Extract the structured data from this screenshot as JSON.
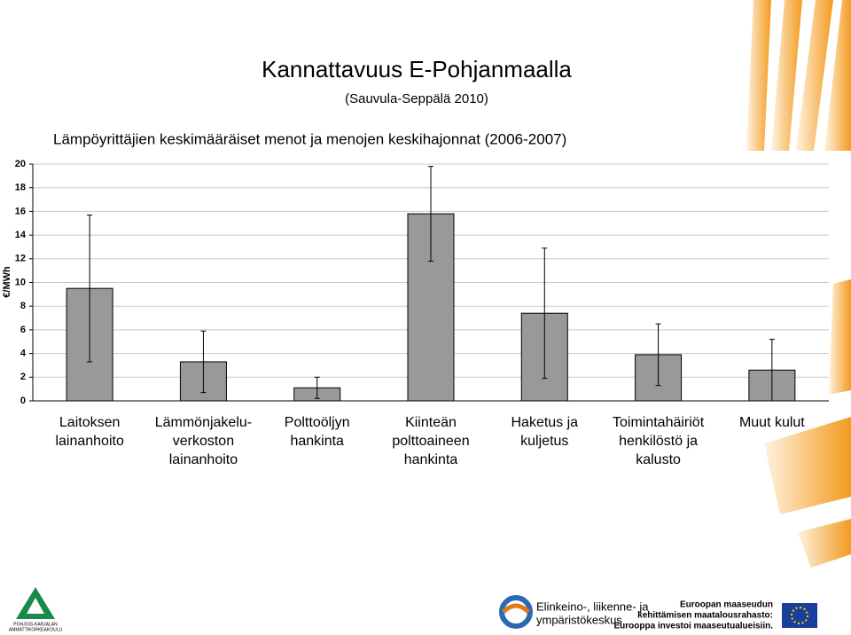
{
  "title": "Kannattavuus E-Pohjanmaalla",
  "subtitle": "(Sauvula-Seppälä 2010)",
  "chart_data": {
    "type": "bar",
    "title": "Lämpöyrittäjien keskimääräiset menot ja menojen keskihajonnat (2006-2007)",
    "y_label": "€/MWh",
    "categories": [
      [
        "Laitoksen",
        "lainanhoito"
      ],
      [
        "Lämmönjakelu-",
        "verkoston",
        "lainanhoito"
      ],
      [
        "Polttoöljyn",
        "hankinta"
      ],
      [
        "Kiinteän",
        "polttoaineen",
        "hankinta"
      ],
      [
        "Haketus ja",
        "kuljetus"
      ],
      [
        "Toimintahäiriöt",
        "henkilöstö ja",
        "kalusto"
      ],
      [
        "Muut kulut"
      ]
    ],
    "values": [
      9.5,
      3.3,
      1.1,
      15.8,
      7.4,
      3.9,
      2.6
    ],
    "errors": [
      6.2,
      2.6,
      0.9,
      4.0,
      5.5,
      2.6,
      2.6
    ],
    "color": "#999999",
    "ylim": [
      0,
      20
    ],
    "yticks": [
      0,
      2,
      4,
      6,
      8,
      10,
      12,
      14,
      16,
      18,
      20
    ],
    "grid": true
  },
  "footer": {
    "left": [
      "POHJOIS-KARJALAN",
      "AMMATTIKORKEAKOULU"
    ],
    "center": [
      "Elinkeino-, liikenne- ja",
      "ympäristökeskus"
    ],
    "right": [
      "Euroopan maaseudun",
      "kehittämisen maatalousrahasto:",
      "Eurooppa investoi maaseutualueisiin."
    ]
  }
}
